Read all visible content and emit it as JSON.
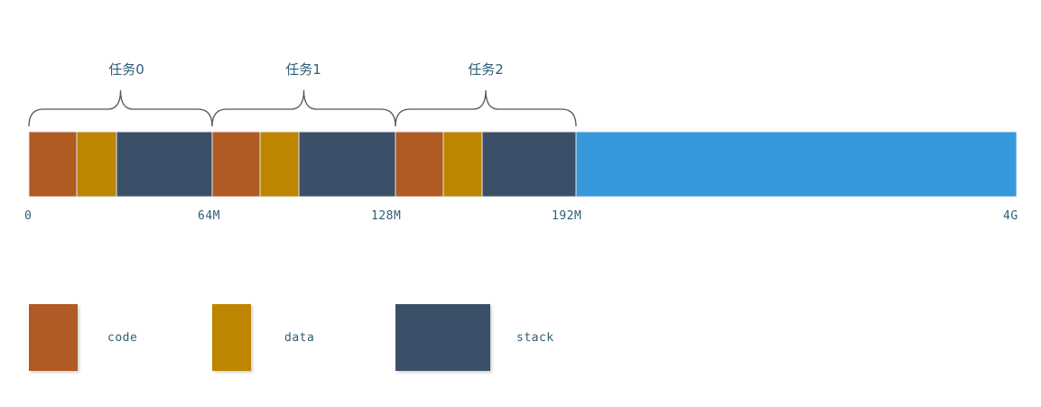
{
  "tasks": [
    "任务0",
    "任务1",
    "任务2"
  ],
  "address_labels": [
    "0",
    "64M",
    "128M",
    "192M",
    "4G"
  ],
  "legend": [
    {
      "key": "code",
      "label": "code",
      "color": "#b05a24"
    },
    {
      "key": "data",
      "label": "data",
      "color": "#be8500"
    },
    {
      "key": "stack",
      "label": "stack",
      "color": "#3b5068"
    }
  ],
  "free_color": "#3598db",
  "memory_segments": [
    {
      "type": "code",
      "task": 0
    },
    {
      "type": "data",
      "task": 0
    },
    {
      "type": "stack",
      "task": 0
    },
    {
      "type": "code",
      "task": 1
    },
    {
      "type": "data",
      "task": 1
    },
    {
      "type": "stack",
      "task": 1
    },
    {
      "type": "code",
      "task": 2
    },
    {
      "type": "data",
      "task": 2
    },
    {
      "type": "stack",
      "task": 2
    },
    {
      "type": "free"
    }
  ]
}
